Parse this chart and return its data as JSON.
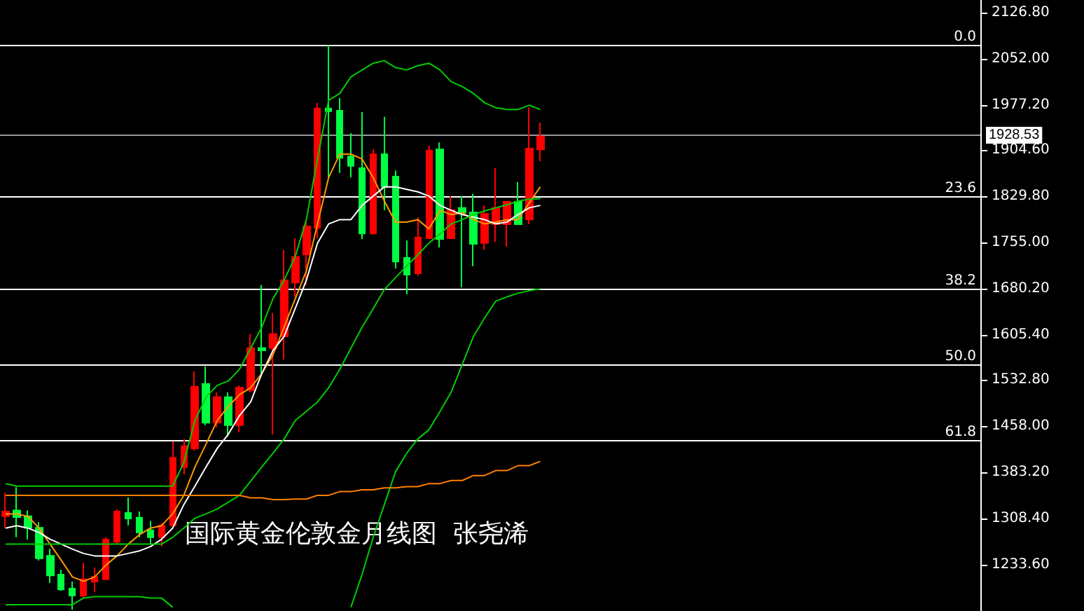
{
  "chart_data": {
    "type": "candlestick",
    "title": "国际黄金伦敦金月线图  张尧浠",
    "categories": [
      null,
      null,
      null,
      null,
      null,
      null,
      null,
      null,
      null,
      null,
      null,
      null,
      null,
      null,
      null,
      null,
      null,
      null,
      null,
      null,
      null,
      null,
      null,
      null,
      null,
      null,
      null,
      null,
      null,
      null,
      null,
      null,
      null,
      null,
      null,
      null,
      null,
      null,
      null,
      null,
      null,
      null,
      null,
      null,
      null,
      null,
      null,
      null,
      null
    ],
    "ohlc": [
      [
        1312.3,
        1350.1,
        1293.4,
        1319.9
      ],
      [
        1321.4,
        1359.2,
        1278.3,
        1310.8
      ],
      [
        1312.3,
        1321.4,
        1274.5,
        1293.4
      ],
      [
        1293.4,
        1302.5,
        1240.5,
        1244.3
      ],
      [
        1248.1,
        1259.4,
        1204.3,
        1216.4
      ],
      [
        1217.9,
        1225.4,
        1191.4,
        1193.7
      ],
      [
        1195.2,
        1206.5,
        1161.2,
        1183.9
      ],
      [
        1183.9,
        1236.7,
        1180.1,
        1210.3
      ],
      [
        1206.5,
        1229.2,
        1189.1,
        1214.1
      ],
      [
        1210.3,
        1278.3,
        1210.3,
        1274.5
      ],
      [
        1270.7,
        1323.6,
        1267.0,
        1319.9
      ],
      [
        1317.6,
        1342.5,
        1297.2,
        1308.5
      ],
      [
        1310.0,
        1319.9,
        1278.3,
        1285.9
      ],
      [
        1289.6,
        1304.8,
        1267.0,
        1278.3
      ],
      [
        1278.3,
        1301.0,
        1263.2,
        1297.2
      ],
      [
        1297.2,
        1433.2,
        1293.4,
        1406.8
      ],
      [
        1391.6,
        1437.0,
        1380.3,
        1425.6
      ],
      [
        1421.9,
        1546.5,
        1418.1,
        1521.6
      ],
      [
        1526.1,
        1554.1,
        1459.6,
        1463.4
      ],
      [
        1463.4,
        1512.5,
        1455.9,
        1505.0
      ],
      [
        1505.0,
        1512.5,
        1440.8,
        1459.6
      ],
      [
        1459.6,
        1523.9,
        1448.3,
        1520.1
      ],
      [
        1516.3,
        1607.0,
        1512.5,
        1584.3
      ],
      [
        1584.3,
        1686.3,
        1542.7,
        1580.5
      ],
      [
        1584.3,
        1641.0,
        1444.5,
        1607.0
      ],
      [
        1603.2,
        1743.0,
        1565.4,
        1693.9
      ],
      [
        1690.1,
        1761.9,
        1667.4,
        1731.6
      ],
      [
        1735.4,
        1792.1,
        1686.3,
        1780.8
      ],
      [
        1778.5,
        1981.0,
        1761.9,
        1971.9
      ],
      [
        1971.9,
        2073.9,
        1860.1,
        1967.4
      ],
      [
        1968.1,
        1988.5,
        1867.6,
        1891.8
      ],
      [
        1894.1,
        1931.9,
        1860.1,
        1879.0
      ],
      [
        1875.2,
        1965.9,
        1760.4,
        1769.4
      ],
      [
        1769.4,
        1905.4,
        1767.9,
        1897.9
      ],
      [
        1897.9,
        1958.3,
        1807.2,
        1845.0
      ],
      [
        1861.6,
        1871.4,
        1712.8,
        1724.1
      ],
      [
        1730.1,
        1758.1,
        1671.2,
        1702.9
      ],
      [
        1705.2,
        1795.9,
        1701.4,
        1763.4
      ],
      [
        1761.9,
        1911.5,
        1760.4,
        1903.9
      ],
      [
        1905.4,
        1916.8,
        1746.8,
        1760.4
      ],
      [
        1761.9,
        1829.9,
        1760.4,
        1807.2
      ],
      [
        1811.0,
        1829.9,
        1682.5,
        1803.4
      ],
      [
        1803.4,
        1833.6,
        1716.5,
        1752.8
      ],
      [
        1754.3,
        1814.8,
        1743.0,
        1801.2
      ],
      [
        1784.5,
        1875.2,
        1755.8,
        1811.0
      ],
      [
        1784.5,
        1822.3,
        1748.3,
        1820.8
      ],
      [
        1820.8,
        1852.5,
        1784.5,
        1784.5
      ],
      [
        1792.1,
        1973.4,
        1784.5,
        1906.9
      ],
      [
        1905.4,
        1948.5,
        1886.5,
        1926.6
      ]
    ],
    "colors": [
      "#ff0000",
      "#00ff40",
      "#00ff40",
      "#00ff40",
      "#00ff40",
      "#00ff40",
      "#00ff40",
      "#ff0000",
      "#ff0000",
      "#ff0000",
      "#ff0000",
      "#00ff40",
      "#00ff40",
      "#00ff40",
      "#ff0000",
      "#ff0000",
      "#ff0000",
      "#ff0000",
      "#00ff40",
      "#ff0000",
      "#00ff40",
      "#ff0000",
      "#ff0000",
      "#00ff40",
      "#ff0000",
      "#ff0000",
      "#ff0000",
      "#ff0000",
      "#ff0000",
      "#00ff40",
      "#00ff40",
      "#00ff40",
      "#00ff40",
      "#ff0000",
      "#00ff40",
      "#00ff40",
      "#00ff40",
      "#ff0000",
      "#ff0000",
      "#00ff40",
      "#ff0000",
      "#00ff40",
      "#00ff40",
      "#ff0000",
      "#ff0000",
      "#ff0000",
      "#00ff40",
      "#ff0000",
      "#ff0000"
    ],
    "series": [
      {
        "type": "line",
        "color": "#ff9900",
        "values": [
          1316,
          1316,
          1312,
          1293,
          1267,
          1241,
          1214,
          1207,
          1214,
          1233,
          1248,
          1267,
          1282,
          1293,
          1297,
          1316,
          1346,
          1392,
          1429,
          1467,
          1490,
          1509,
          1520,
          1543,
          1573,
          1618,
          1664,
          1709,
          1785,
          1860,
          1898,
          1898,
          1890,
          1860,
          1822,
          1788,
          1788,
          1792,
          1777,
          1807,
          1800,
          1803,
          1792,
          1785,
          1788,
          1792,
          1792,
          1819,
          1845
        ]
      },
      {
        "type": "line",
        "color": "#ffffff",
        "values": [
          1293,
          1297,
          1293,
          1286,
          1275,
          1267,
          1259,
          1252,
          1248,
          1248,
          1248,
          1252,
          1256,
          1263,
          1275,
          1293,
          1331,
          1361,
          1392,
          1422,
          1445,
          1475,
          1497,
          1543,
          1580,
          1603,
          1648,
          1694,
          1754,
          1785,
          1792,
          1792,
          1815,
          1830,
          1845,
          1845,
          1841,
          1837,
          1830,
          1815,
          1807,
          1800,
          1796,
          1792,
          1785,
          1788,
          1800,
          1811,
          1815
        ]
      },
      {
        "type": "line",
        "color": "#00cc00",
        "values": [
          1365,
          1361,
          1361,
          1361,
          1361,
          1361,
          1361,
          1361,
          1361,
          1361,
          1361,
          1361,
          1361,
          1361,
          1361,
          1361,
          1399,
          1467,
          1505,
          1524,
          1531,
          1550,
          1584,
          1618,
          1664,
          1694,
          1732,
          1792,
          1890,
          1985,
          1996,
          2023,
          2034,
          2045,
          2049,
          2038,
          2034,
          2041,
          2045,
          2034,
          2015,
          2007,
          1996,
          1981,
          1973,
          1970,
          1970,
          1977,
          1970
        ]
      },
      {
        "type": "line",
        "color": "#00cc00",
        "values": [
          1267,
          1267,
          1267,
          1267,
          1267,
          1267,
          1267,
          1267,
          1267,
          1267,
          1267,
          1267,
          1267,
          1267,
          1267,
          1278,
          1293,
          1309,
          1316,
          1324,
          1335,
          1346,
          1369,
          1392,
          1414,
          1437,
          1467,
          1482,
          1497,
          1520,
          1550,
          1584,
          1618,
          1648,
          1679,
          1698,
          1717,
          1735,
          1754,
          1769,
          1785,
          1792,
          1800,
          1806,
          1811,
          1816,
          1822,
          1825,
          1826
        ]
      },
      {
        "type": "line",
        "color": "#00cc00",
        "values": [
          1169,
          1169,
          1169,
          1169,
          1169,
          1169,
          1169,
          1180,
          1182,
          1182,
          1182,
          1182,
          1182,
          1180,
          1180,
          1165,
          null,
          null,
          null,
          null,
          null,
          null,
          null,
          null,
          null,
          null,
          null,
          null,
          null,
          null,
          null,
          1165,
          1218,
          1278,
          1331,
          1384,
          1414,
          1437,
          1452,
          1482,
          1513,
          1558,
          1603,
          1633,
          1660,
          1667,
          1673,
          1677,
          1680
        ]
      },
      {
        "type": "line",
        "color": "#ff8000",
        "values": [
          1346,
          1346,
          1346,
          1346,
          1346,
          1346,
          1346,
          1346,
          1346,
          1346,
          1346,
          1346,
          1346,
          1346,
          1346,
          1346,
          1346,
          1346,
          1346,
          1346,
          1346,
          1346,
          1342,
          1342,
          1339,
          1339,
          1340,
          1340,
          1346,
          1346,
          1352,
          1352,
          1355,
          1355,
          1358,
          1358,
          1360,
          1360,
          1365,
          1365,
          1370,
          1370,
          1378,
          1378,
          1386,
          1386,
          1394,
          1394,
          1401
        ]
      }
    ],
    "ylim": [
      1158.9,
      2147.2
    ],
    "yticks": [
      {
        "value": 2126.8,
        "label": "2126.80"
      },
      {
        "value": 2052.0,
        "label": "2052.00"
      },
      {
        "value": 1977.2,
        "label": "1977.20"
      },
      {
        "value": 1904.6,
        "label": "1904.60"
      },
      {
        "value": 1829.8,
        "label": "1829.80"
      },
      {
        "value": 1755.0,
        "label": "1755.00"
      },
      {
        "value": 1680.2,
        "label": "1680.20"
      },
      {
        "value": 1605.4,
        "label": "1605.40"
      },
      {
        "value": 1532.8,
        "label": "1532.80"
      },
      {
        "value": 1458.0,
        "label": "1458.00"
      },
      {
        "value": 1383.2,
        "label": "1383.20"
      },
      {
        "value": 1308.4,
        "label": "1308.40"
      },
      {
        "value": 1233.6,
        "label": "1233.60"
      }
    ],
    "ref_lines": [
      {
        "axis": "y",
        "value": 2073.9,
        "color": "#ffffff"
      },
      {
        "axis": "y",
        "value": 1829.1,
        "color": "#ffffff"
      },
      {
        "axis": "y",
        "value": 1679.5,
        "color": "#ffffff"
      },
      {
        "axis": "y",
        "value": 1557.1,
        "color": "#ffffff"
      },
      {
        "axis": "y",
        "value": 1434.7,
        "color": "#ffffff"
      },
      {
        "axis": "y",
        "value": 1928.53,
        "label": "1928.53",
        "color": "#999999"
      }
    ],
    "annotations": [
      {
        "text": "0.0",
        "y": 2073.9
      },
      {
        "text": "23.6",
        "y": 1829.1
      },
      {
        "text": "38.2",
        "y": 1679.5
      },
      {
        "text": "50.0",
        "y": 1557.1
      },
      {
        "text": "61.8",
        "y": 1434.7
      }
    ],
    "tick_labels": "y"
  }
}
